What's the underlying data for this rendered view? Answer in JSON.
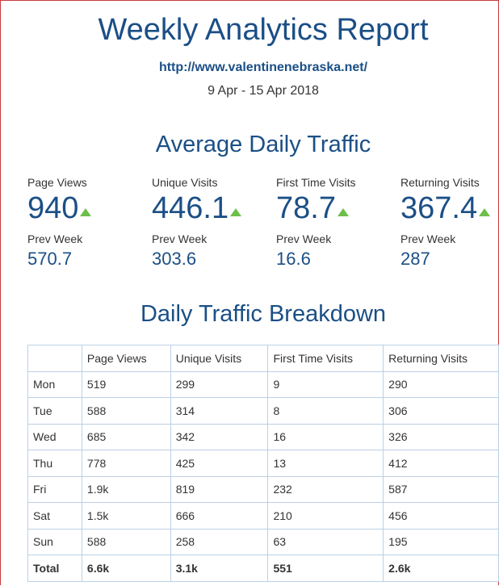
{
  "header": {
    "title": "Weekly Analytics Report",
    "url": "http://www.valentinenebraska.net/",
    "date_range": "9 Apr - 15 Apr 2018"
  },
  "summary": {
    "section_title": "Average Daily Traffic",
    "prev_label": "Prev Week",
    "trend_icon": "up-triangle-icon",
    "trend_color": "#6dbf4b",
    "stats": [
      {
        "label": "Page Views",
        "value": "940",
        "prev": "570.7",
        "trend": "up"
      },
      {
        "label": "Unique Visits",
        "value": "446.1",
        "prev": "303.6",
        "trend": "up"
      },
      {
        "label": "First Time Visits",
        "value": "78.7",
        "prev": "16.6",
        "trend": "up"
      },
      {
        "label": "Returning Visits",
        "value": "367.4",
        "prev": "287",
        "trend": "up"
      }
    ]
  },
  "breakdown": {
    "section_title": "Daily Traffic Breakdown",
    "columns": [
      "",
      "Page Views",
      "Unique Visits",
      "First Time Visits",
      "Returning Visits"
    ],
    "rows": [
      [
        "Mon",
        "519",
        "299",
        "9",
        "290"
      ],
      [
        "Tue",
        "588",
        "314",
        "8",
        "306"
      ],
      [
        "Wed",
        "685",
        "342",
        "16",
        "326"
      ],
      [
        "Thu",
        "778",
        "425",
        "13",
        "412"
      ],
      [
        "Fri",
        "1.9k",
        "819",
        "232",
        "587"
      ],
      [
        "Sat",
        "1.5k",
        "666",
        "210",
        "456"
      ],
      [
        "Sun",
        "588",
        "258",
        "63",
        "195"
      ]
    ],
    "total": [
      "Total",
      "6.6k",
      "3.1k",
      "551",
      "2.6k"
    ]
  },
  "colors": {
    "heading": "#1b4f86",
    "frame_border": "#c83a3a",
    "table_border": "#bcd0e4"
  }
}
